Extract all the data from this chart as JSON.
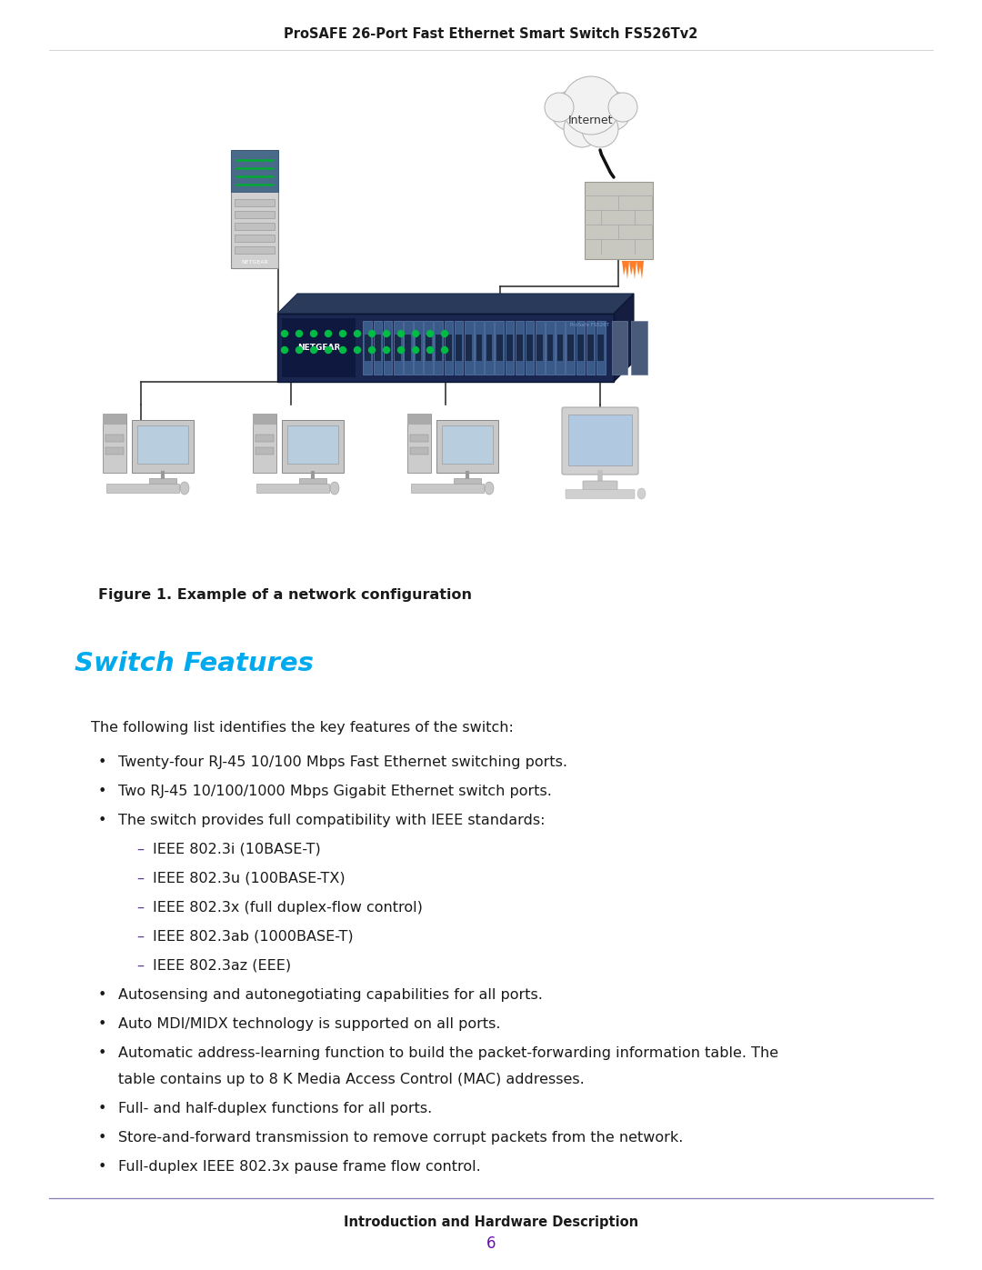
{
  "page_title": "ProSAFE 26-Port Fast Ethernet Smart Switch FS526Tv2",
  "figure_caption": "Figure 1. Example of a network configuration",
  "section_title": "Switch Features",
  "section_title_color": "#00AAEE",
  "intro_text": "The following list identifies the key features of the switch:",
  "bullet_color": "#555555",
  "bullet_char": "•",
  "dash_char": "–",
  "bullets": [
    "Twenty-four RJ-45 10/100 Mbps Fast Ethernet switching ports.",
    "Two RJ-45 10/100/1000 Mbps Gigabit Ethernet switch ports.",
    "The switch provides full compatibility with IEEE standards:"
  ],
  "sub_bullets": [
    "IEEE 802.3i (10BASE-T)",
    "IEEE 802.3u (100BASE-TX)",
    "IEEE 802.3x (full duplex-flow control)",
    "IEEE 802.3ab (1000BASE-T)",
    "IEEE 802.3az (EEE)"
  ],
  "more_bullets": [
    "Autosensing and autonegotiating capabilities for all ports.",
    "Auto MDI/MIDX technology is supported on all ports.",
    "Automatic address-learning function to build the packet-forwarding information table. The\ntable contains up to 8 K Media Access Control (MAC) addresses.",
    "Full- and half-duplex functions for all ports.",
    "Store-and-forward transmission to remove corrupt packets from the network.",
    "Full-duplex IEEE 802.3x pause frame flow control."
  ],
  "footer_text": "Introduction and Hardware Description",
  "page_number": "6",
  "page_number_color": "#6A0DAD",
  "bg_color": "#FFFFFF",
  "text_color": "#1A1A1A",
  "footer_line_color": "#8B7BB5",
  "title_font_size": 10.5,
  "section_font_size": 21,
  "body_font_size": 11.5,
  "footer_font_size": 10.5
}
